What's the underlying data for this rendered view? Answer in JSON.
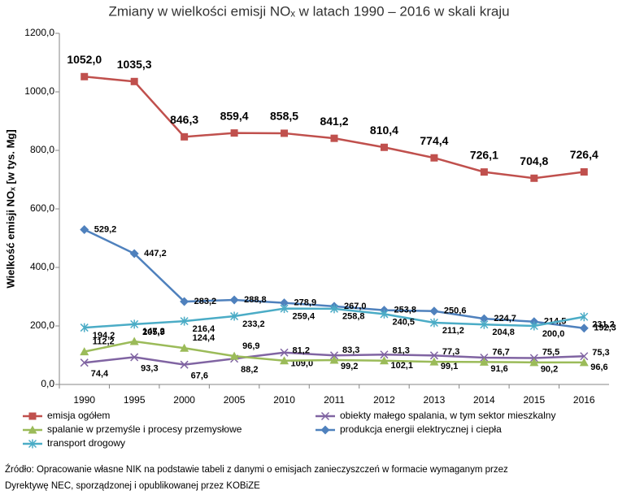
{
  "chart_data": {
    "type": "line",
    "title": "Zmiany w wielkości emisji NOₓ w latach 1990 – 2016 w skali kraju",
    "y_label": "Wielkość emisji NOₓ [w tys. Mg]",
    "categories": [
      "1990",
      "1995",
      "2000",
      "2005",
      "2010",
      "2011",
      "2012",
      "2013",
      "2014",
      "2015",
      "2016"
    ],
    "ylim": [
      0,
      1200
    ],
    "yticks": [
      {
        "value": 0,
        "label": "0,0"
      },
      {
        "value": 200,
        "label": "200,0"
      },
      {
        "value": 400,
        "label": "400,0"
      },
      {
        "value": 600,
        "label": "600,0"
      },
      {
        "value": 800,
        "label": "800,0"
      },
      {
        "value": 1000,
        "label": "1000,0"
      },
      {
        "value": 1200,
        "label": "1200,0"
      }
    ],
    "grid": false,
    "series": [
      {
        "name": "emisja ogółem",
        "color": "#C0504D",
        "marker": "square",
        "values": [
          1052.0,
          1035.3,
          846.3,
          859.4,
          858.5,
          841.2,
          810.4,
          774.4,
          726.1,
          704.8,
          726.4
        ],
        "value_labels": [
          "1052,0",
          "1035,3",
          "846,3",
          "859,4",
          "858,5",
          "841,2",
          "810,4",
          "774,4",
          "726,1",
          "704,8",
          "726,4"
        ]
      },
      {
        "name": "obiekty małego spalania, w tym sektor mieszkalny",
        "color": "#8064A2",
        "marker": "x",
        "values": [
          74.4,
          93.3,
          67.6,
          88.2,
          109.0,
          99.2,
          102.1,
          99.1,
          91.6,
          90.2,
          96.6
        ],
        "value_labels": [
          "74,4",
          "93,3",
          "67,6",
          "88,2",
          "109,0",
          "99,2",
          "102,1",
          "99,1",
          "91,6",
          "90,2",
          "96,6"
        ]
      },
      {
        "name": "spalanie w przemyśle i procesy przemysłowe",
        "color": "#9BBB59",
        "marker": "triangle",
        "values": [
          112.2,
          147.2,
          124.4,
          96.9,
          81.2,
          83.3,
          81.3,
          77.3,
          76.7,
          75.5,
          75.3
        ],
        "value_labels": [
          "112,2",
          "147,2",
          "124,4",
          "96,9",
          "81,2",
          "83,3",
          "81,3",
          "77,3",
          "76,7",
          "75,5",
          "75,3"
        ]
      },
      {
        "name": "produkcja energii elektrycznej i ciepła",
        "color": "#4F81BD",
        "marker": "diamond",
        "values": [
          529.2,
          447.2,
          283.2,
          288.8,
          278.9,
          267.0,
          253.8,
          250.6,
          224.7,
          214.5,
          192.3
        ],
        "value_labels": [
          "529,2",
          "447,2",
          "283,2",
          "288,8",
          "278,9",
          "267,0",
          "253,8",
          "250,6",
          "224,7",
          "214,5",
          "192,3"
        ]
      },
      {
        "name": "transport drogowy",
        "color": "#4BACC6",
        "marker": "star",
        "values": [
          194.2,
          205.9,
          216.4,
          233.2,
          259.4,
          258.8,
          240.5,
          211.2,
          204.8,
          200.0,
          231.2
        ],
        "value_labels": [
          "194,2",
          "205,9",
          "216,4",
          "233,2",
          "259,4",
          "258,8",
          "240,5",
          "211,2",
          "204,8",
          "200,0",
          "231,2"
        ]
      }
    ],
    "source": [
      "Źródło: Opracowanie własne NIK na podstawie tabeli z danymi o emisjach zanieczyszczeń w formacie wymaganym przez",
      "Dyrektywę NEC, sporządzonej i opublikowanej przez KOBiZE"
    ]
  }
}
